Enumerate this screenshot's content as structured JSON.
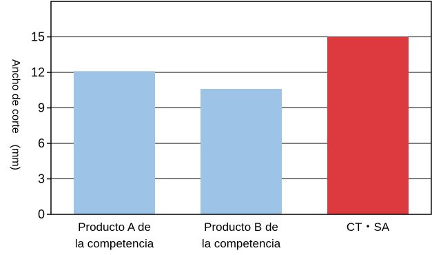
{
  "chart_data": {
    "type": "bar",
    "ylabel": "Ancho de corte　(mm)",
    "ylim": [
      0,
      18
    ],
    "yticks": [
      0,
      3,
      6,
      9,
      12,
      15
    ],
    "grid": true,
    "categories": [
      [
        "Producto A de",
        "la competencia"
      ],
      [
        "Producto B de",
        "la competencia"
      ],
      [
        "CT・SA"
      ]
    ],
    "values": [
      12.1,
      10.6,
      15.0
    ],
    "colors": [
      "#9dc3e6",
      "#9dc3e6",
      "#dc3a3f"
    ]
  }
}
